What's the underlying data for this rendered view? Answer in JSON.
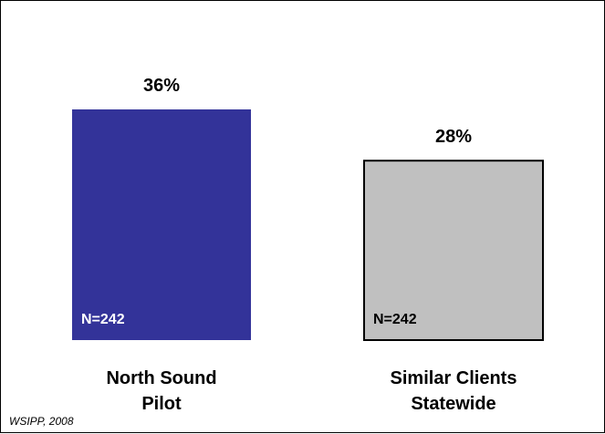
{
  "chart_data": {
    "type": "bar",
    "categories": [
      "North Sound Pilot",
      "Similar Clients Statewide"
    ],
    "values": [
      36,
      28
    ],
    "value_labels": [
      "36%",
      "28%"
    ],
    "n_labels": [
      "N=242",
      "N=242"
    ],
    "colors": [
      "#333399",
      "#c0c0c0"
    ],
    "title": "",
    "xlabel": "",
    "ylabel": "",
    "ylim": [
      0,
      60
    ],
    "grid": false
  },
  "source": "WSIPP, 2008"
}
